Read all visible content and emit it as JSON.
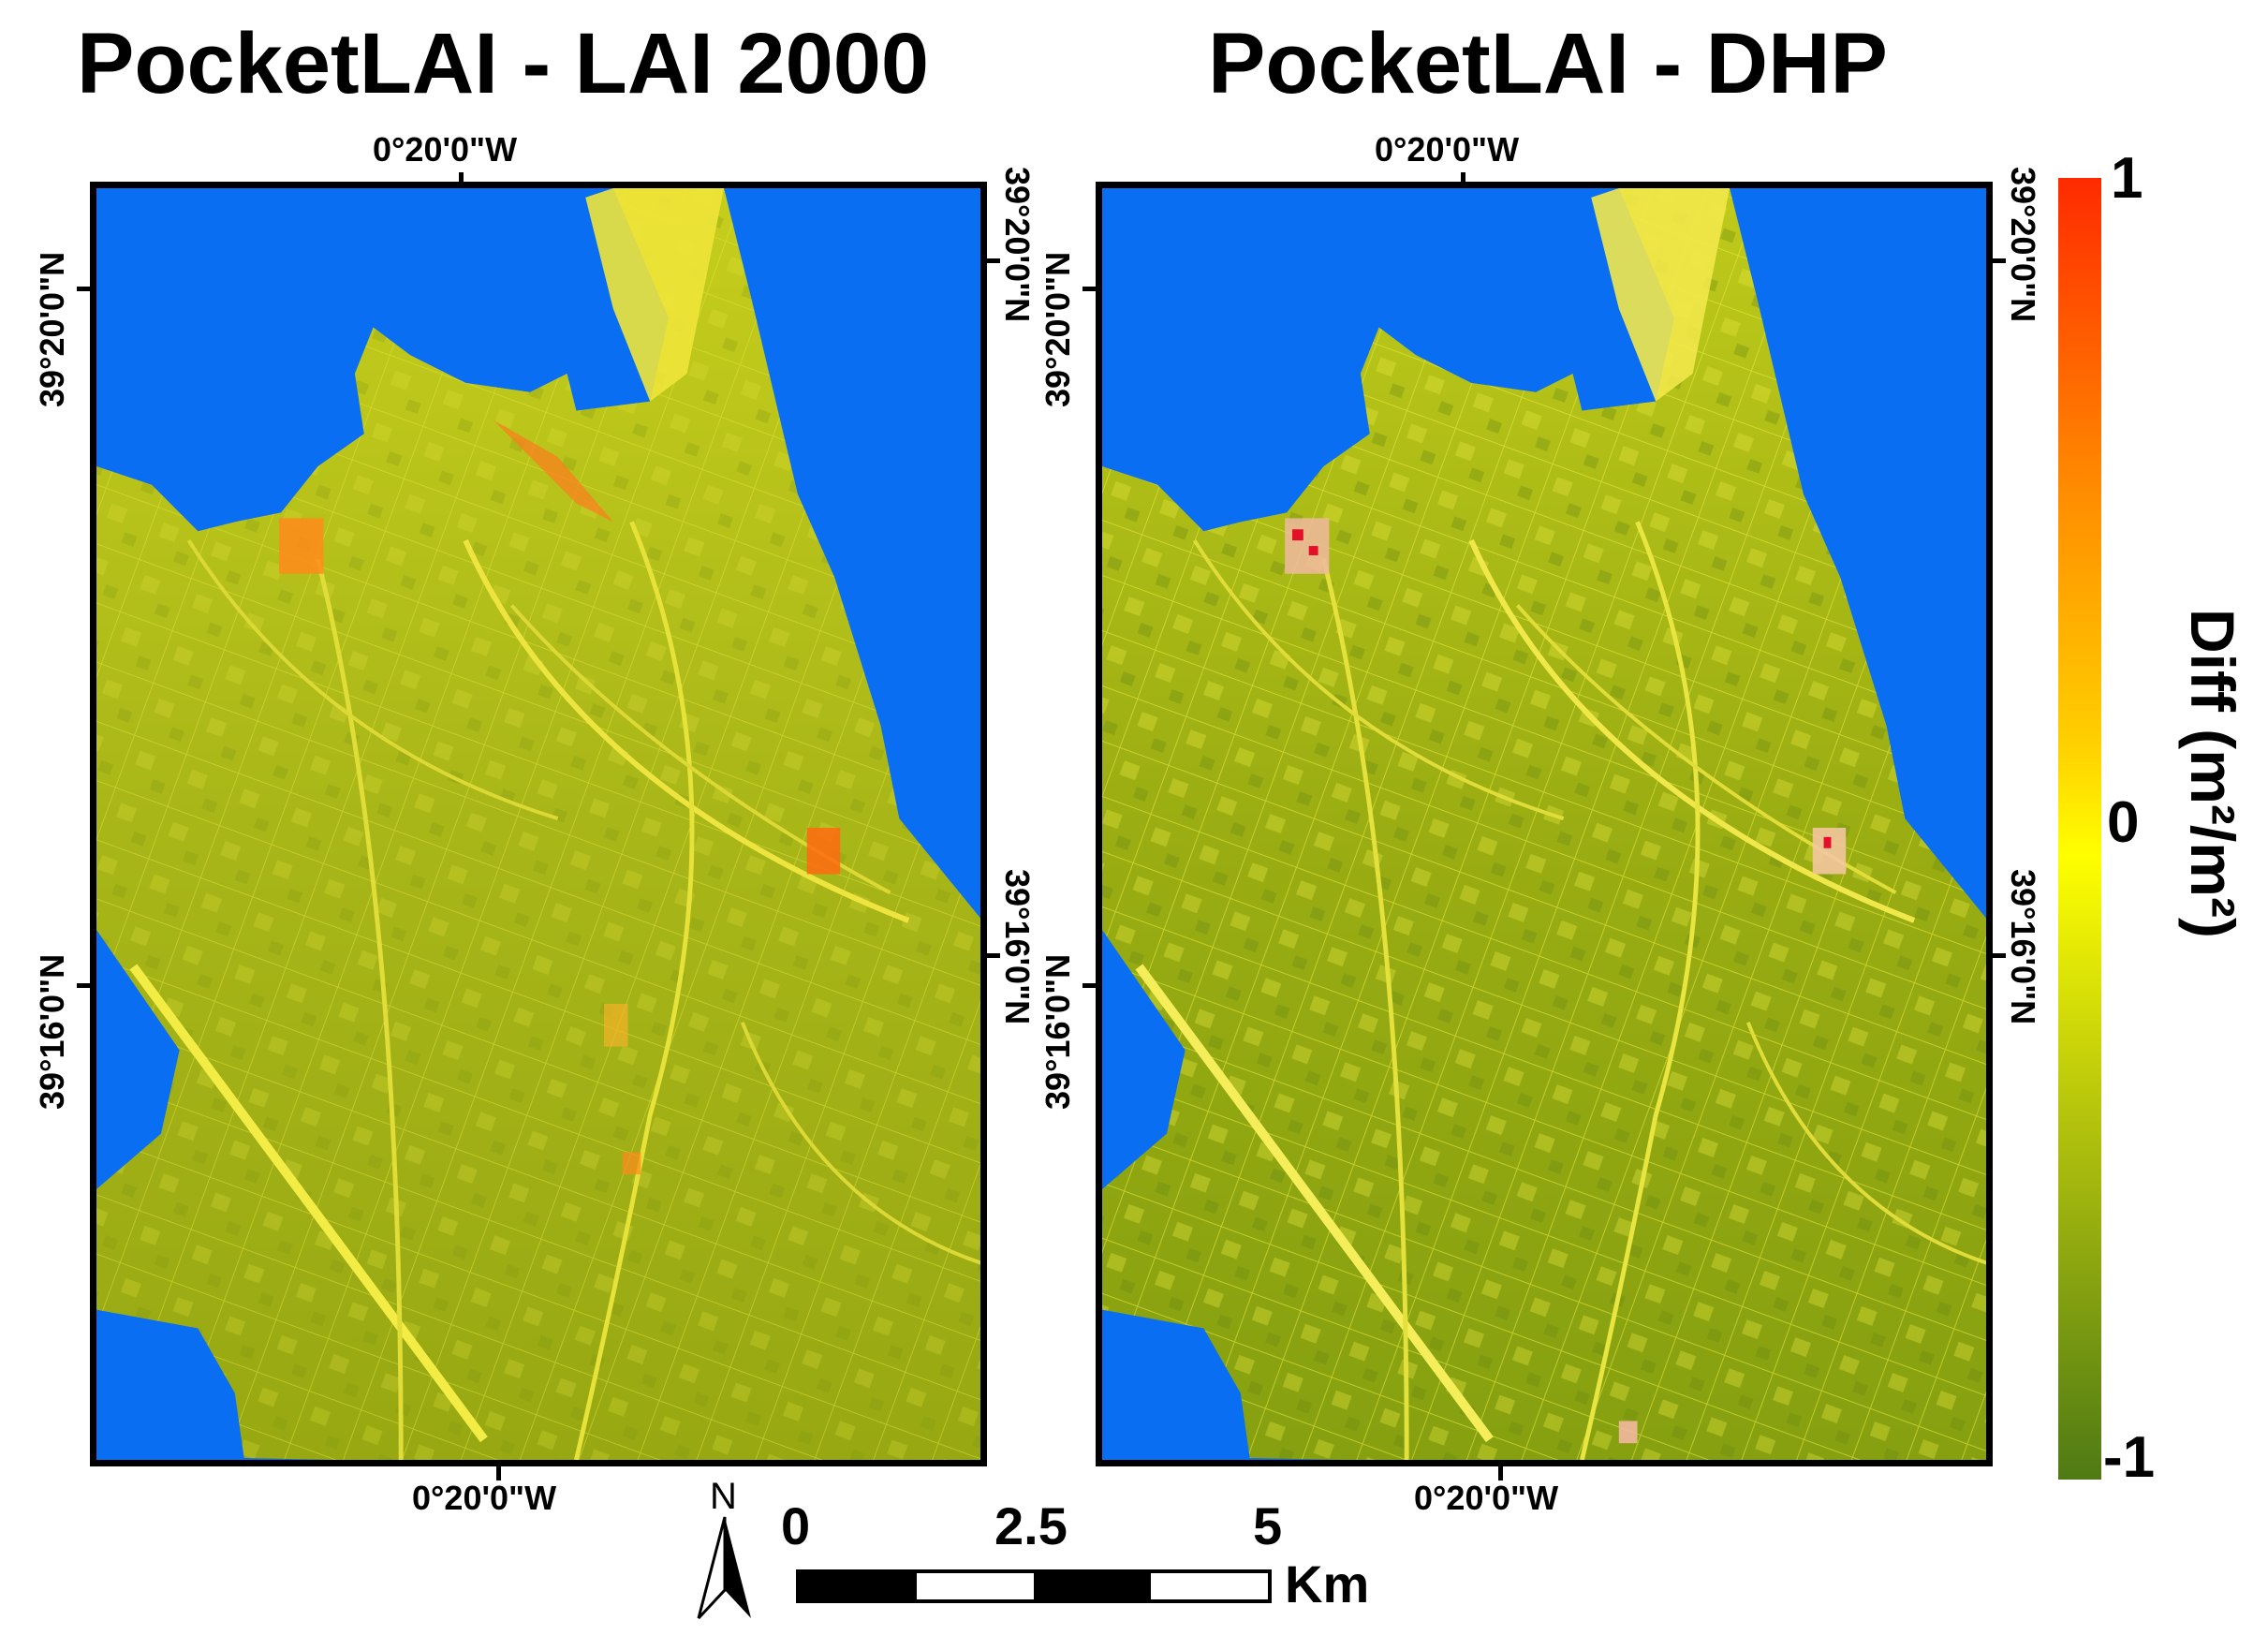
{
  "panels": [
    {
      "title": "PocketLAI - LAI 2000",
      "lon_top": "0°20'0\"W",
      "lon_bottom": "0°20'0\"W",
      "lat_left_top": "39°20'0\"N",
      "lat_left_bottom": "39°16'0\"N",
      "lat_right_top": "39°20'0\"N",
      "lat_right_bottom": "39°16'0\"N",
      "tint": "#a6b81a"
    },
    {
      "title": "PocketLAI - DHP",
      "lon_top": "0°20'0\"W",
      "lon_bottom": "0°20'0\"W",
      "lat_left_top": "39°20'0\"N",
      "lat_left_bottom": "39°16'0\"N",
      "lat_right_top": "39°20'0\"N",
      "lat_right_bottom": "39°16'0\"N",
      "tint": "#9aae10"
    }
  ],
  "colorbar": {
    "max_label": "1",
    "mid_label": "0",
    "min_label": "-1",
    "title": "Diff (m²/m²)",
    "colors": [
      "#ff2a00",
      "#ff8c00",
      "#ffd200",
      "#ffff00",
      "#b5c40c",
      "#4f7a14"
    ]
  },
  "scalebar": {
    "north_label": "N",
    "ticks": [
      "0",
      "2.5",
      "5"
    ],
    "unit": "Km"
  },
  "colors": {
    "water": "#0a6ef2",
    "highlight": "#f5f03a",
    "hotspot": "#ff6a00"
  }
}
